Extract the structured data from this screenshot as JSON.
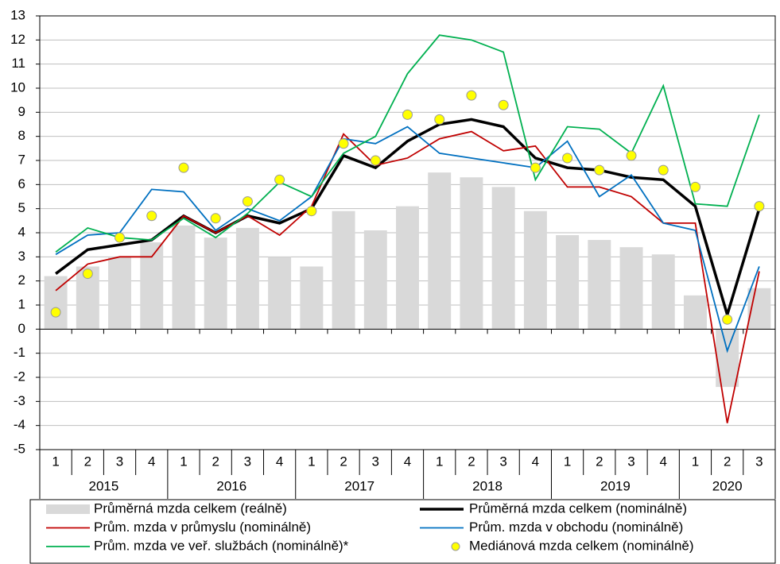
{
  "chart_data": {
    "type": "bar",
    "categories": [
      "1",
      "2",
      "3",
      "4",
      "1",
      "2",
      "3",
      "4",
      "1",
      "2",
      "3",
      "4",
      "1",
      "2",
      "3",
      "4",
      "1",
      "2",
      "3",
      "4",
      "1",
      "2",
      "3"
    ],
    "groups": [
      "2015",
      "2016",
      "2017",
      "2018",
      "2019",
      "2020"
    ],
    "ylim": [
      -5,
      13
    ],
    "yticks": [
      -5,
      -4,
      -3,
      -2,
      -1,
      0,
      1,
      2,
      3,
      4,
      5,
      6,
      7,
      8,
      9,
      10,
      11,
      12,
      13
    ],
    "grid": true,
    "legend": "bottom",
    "series": [
      {
        "name": "Průměrná mzda celkem (reálně)",
        "type": "bar",
        "color": "#d9d9d9",
        "values": [
          2.2,
          2.6,
          3.0,
          3.6,
          4.3,
          3.8,
          4.2,
          3.0,
          2.6,
          4.9,
          4.1,
          5.1,
          6.5,
          6.3,
          5.9,
          4.9,
          3.9,
          3.7,
          3.4,
          3.1,
          1.4,
          -2.4,
          1.7
        ]
      },
      {
        "name": "Průměrná mzda celkem (nominálně)",
        "type": "line",
        "color": "#000000",
        "width": 3.5,
        "values": [
          2.3,
          3.3,
          3.5,
          3.7,
          4.7,
          4.0,
          4.7,
          4.4,
          5.0,
          7.2,
          6.7,
          7.8,
          8.5,
          8.7,
          8.4,
          7.1,
          6.7,
          6.6,
          6.3,
          6.2,
          5.1,
          0.6,
          5.0
        ]
      },
      {
        "name": "Prům. mzda v průmyslu (nominálně)",
        "type": "line",
        "color": "#c00000",
        "width": 1.8,
        "values": [
          1.6,
          2.7,
          3.0,
          3.0,
          4.7,
          4.0,
          4.7,
          3.9,
          5.1,
          8.1,
          6.8,
          7.1,
          7.9,
          8.2,
          7.4,
          7.6,
          5.9,
          5.9,
          5.5,
          4.4,
          4.4,
          -3.9,
          2.4
        ]
      },
      {
        "name": "Prům. mzda v obchodu (nominálně)",
        "type": "line",
        "color": "#0070c0",
        "width": 1.8,
        "values": [
          3.1,
          3.9,
          4.0,
          5.8,
          5.7,
          4.1,
          5.0,
          4.5,
          5.5,
          7.9,
          7.7,
          8.4,
          7.3,
          7.1,
          6.9,
          6.7,
          7.8,
          5.5,
          6.4,
          4.4,
          4.1,
          -0.9,
          2.6
        ]
      },
      {
        "name": "Prům. mzda ve veř. službách (nominálně)*",
        "type": "line",
        "color": "#00b050",
        "width": 1.8,
        "values": [
          3.2,
          4.2,
          3.8,
          3.7,
          4.6,
          3.8,
          4.8,
          6.1,
          5.5,
          7.3,
          8.0,
          10.6,
          12.2,
          12.0,
          11.5,
          6.2,
          8.4,
          8.3,
          7.3,
          10.1,
          5.2,
          5.1,
          8.9
        ]
      },
      {
        "name": "Mediánová mzda celkem (nominálně)",
        "type": "scatter",
        "color": "#ffff00",
        "values": [
          0.7,
          2.3,
          3.8,
          4.7,
          6.7,
          4.6,
          5.3,
          6.2,
          4.9,
          7.7,
          7.0,
          8.9,
          8.7,
          9.7,
          9.3,
          6.7,
          7.1,
          6.6,
          7.2,
          6.6,
          5.9,
          0.4,
          5.1
        ]
      }
    ]
  }
}
